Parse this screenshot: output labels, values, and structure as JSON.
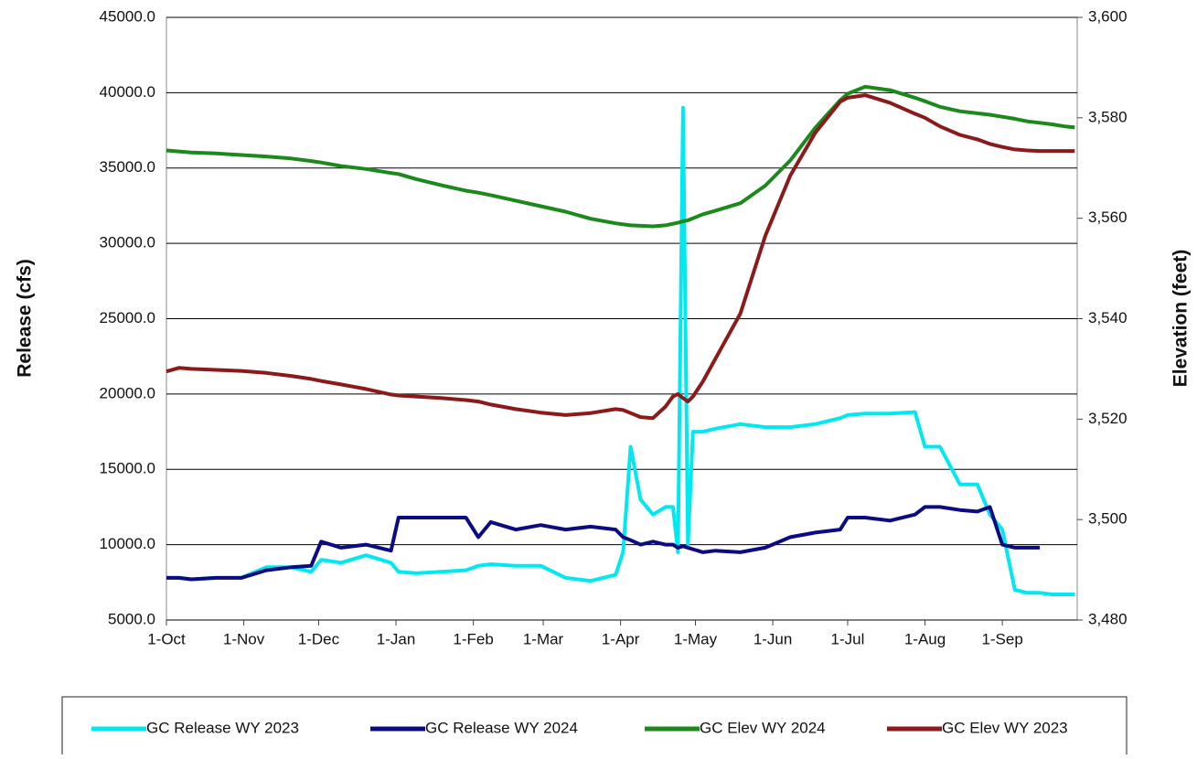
{
  "chart_data": {
    "type": "line",
    "ylabel": "Release (cfs)",
    "y2label": "Elevation (feet)",
    "xlim": [
      0,
      365
    ],
    "xticks": [
      {
        "value": 0,
        "label": "1-Oct"
      },
      {
        "value": 31,
        "label": "1-Nov"
      },
      {
        "value": 61,
        "label": "1-Dec"
      },
      {
        "value": 92,
        "label": "1-Jan"
      },
      {
        "value": 123,
        "label": "1-Feb"
      },
      {
        "value": 151,
        "label": "1-Mar"
      },
      {
        "value": 182,
        "label": "1-Apr"
      },
      {
        "value": 212,
        "label": "1-May"
      },
      {
        "value": 243,
        "label": "1-Jun"
      },
      {
        "value": 273,
        "label": "1-Jul"
      },
      {
        "value": 304,
        "label": "1-Aug"
      },
      {
        "value": 335,
        "label": "1-Sep"
      }
    ],
    "ylim": [
      5000,
      45000
    ],
    "yticks": [
      {
        "value": 5000,
        "label": "5000.0"
      },
      {
        "value": 10000,
        "label": "10000.0"
      },
      {
        "value": 15000,
        "label": "15000.0"
      },
      {
        "value": 20000,
        "label": "20000.0"
      },
      {
        "value": 25000,
        "label": "25000.0"
      },
      {
        "value": 30000,
        "label": "30000.0"
      },
      {
        "value": 35000,
        "label": "35000.0"
      },
      {
        "value": 40000,
        "label": "40000.0"
      },
      {
        "value": 45000,
        "label": "45000.0"
      }
    ],
    "y2lim": [
      3480,
      3600
    ],
    "y2ticks": [
      {
        "value": 3480,
        "label": "3,480"
      },
      {
        "value": 3500,
        "label": "3,500"
      },
      {
        "value": 3520,
        "label": "3,520"
      },
      {
        "value": 3540,
        "label": "3,540"
      },
      {
        "value": 3560,
        "label": "3,560"
      },
      {
        "value": 3580,
        "label": "3,580"
      },
      {
        "value": 3600,
        "label": "3,600"
      }
    ],
    "grid": true,
    "legend": "bottom",
    "x": [
      0,
      5,
      10,
      20,
      30,
      40,
      50,
      58,
      62,
      70,
      80,
      90,
      93,
      100,
      110,
      120,
      125,
      130,
      140,
      150,
      160,
      170,
      180,
      183,
      186,
      190,
      195,
      200,
      203,
      205,
      207,
      209,
      211,
      215,
      220,
      230,
      240,
      250,
      260,
      270,
      273,
      280,
      290,
      300,
      304,
      310,
      318,
      325,
      330,
      335,
      340,
      345,
      350,
      355,
      360,
      364
    ],
    "series": [
      {
        "name": "GC Release WY 2023",
        "color": "#00e8f0",
        "axis": "y",
        "values": [
          7800,
          7800,
          7700,
          7800,
          7800,
          8500,
          8500,
          8200,
          9000,
          8800,
          9300,
          8800,
          8200,
          8100,
          8200,
          8300,
          8600,
          8700,
          8600,
          8600,
          7800,
          7600,
          8000,
          9500,
          16500,
          13000,
          12000,
          12500,
          12500,
          9500,
          39000,
          10000,
          17500,
          17500,
          17700,
          18000,
          17800,
          17800,
          18000,
          18400,
          18600,
          18700,
          18700,
          18800,
          16500,
          16500,
          14000,
          14000,
          12000,
          11000,
          7000,
          6800,
          6800,
          6700,
          6700,
          6700
        ]
      },
      {
        "name": "GC Release WY 2024",
        "color": "#0c0c82",
        "axis": "y",
        "values": [
          7800,
          7800,
          7700,
          7800,
          7800,
          8300,
          8500,
          8600,
          10200,
          9800,
          10000,
          9600,
          11800,
          11800,
          11800,
          11800,
          10500,
          11500,
          11000,
          11300,
          11000,
          11200,
          11000,
          10500,
          10300,
          10000,
          10200,
          10000,
          10000,
          9800,
          9900,
          9800,
          9700,
          9500,
          9600,
          9500,
          9800,
          10500,
          10800,
          11000,
          11800,
          11800,
          11600,
          12000,
          12500,
          12500,
          12300,
          12200,
          12500,
          10000,
          9800,
          9800,
          9800,
          null,
          null,
          null
        ]
      },
      {
        "name": "GC Elev WY 2024",
        "color": "#1b8a1b",
        "axis": "y2",
        "values": [
          3573.5,
          3573.3,
          3573.1,
          3572.9,
          3572.6,
          3572.3,
          3571.9,
          3571.4,
          3571.1,
          3570.4,
          3569.8,
          3569.0,
          3568.8,
          3567.8,
          3566.6,
          3565.5,
          3565.1,
          3564.6,
          3563.5,
          3562.4,
          3561.3,
          3559.9,
          3559.0,
          3558.8,
          3558.6,
          3558.5,
          3558.4,
          3558.6,
          3558.9,
          3559.1,
          3559.4,
          3559.6,
          3560.0,
          3560.8,
          3561.5,
          3563.0,
          3566.5,
          3571.5,
          3578.0,
          3583.5,
          3584.8,
          3586.2,
          3585.5,
          3584.0,
          3583.3,
          3582.2,
          3581.3,
          3580.9,
          3580.6,
          3580.2,
          3579.8,
          3579.3,
          3579.0,
          3578.7,
          3578.3,
          3578.1
        ]
      },
      {
        "name": "GC Elev WY 2023",
        "color": "#8b1a1a",
        "axis": "y2",
        "values": [
          3529.5,
          3530.2,
          3530.0,
          3529.8,
          3529.6,
          3529.2,
          3528.6,
          3528.0,
          3527.6,
          3526.9,
          3526.0,
          3524.9,
          3524.7,
          3524.5,
          3524.2,
          3523.8,
          3523.5,
          3522.9,
          3522.0,
          3521.3,
          3520.8,
          3521.2,
          3522.0,
          3521.8,
          3521.2,
          3520.4,
          3520.2,
          3522.5,
          3524.5,
          3525.0,
          3524.2,
          3523.5,
          3524.5,
          3527.5,
          3532.0,
          3541.0,
          3556.5,
          3568.5,
          3577.0,
          3583.2,
          3584.0,
          3584.5,
          3583.0,
          3580.8,
          3580.0,
          3578.3,
          3576.6,
          3575.7,
          3574.8,
          3574.2,
          3573.7,
          3573.5,
          3573.4,
          3573.4,
          3573.4,
          3573.4
        ]
      }
    ]
  }
}
